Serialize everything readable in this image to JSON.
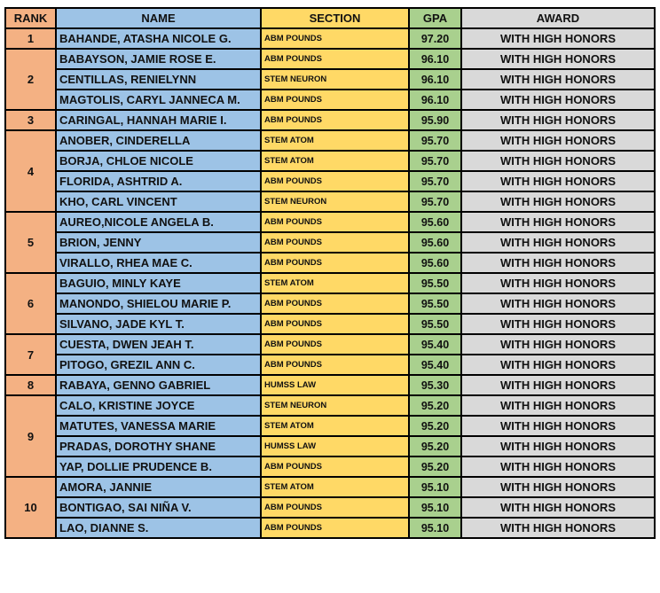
{
  "headers": {
    "rank": "RANK",
    "name": "NAME",
    "section": "SECTION",
    "gpa": "GPA",
    "award": "AWARD"
  },
  "groups": [
    {
      "rank": "1",
      "rows": [
        {
          "name": "BAHANDE, ATASHA NICOLE G.",
          "section": "ABM POUNDS",
          "gpa": "97.20",
          "award": "WITH HIGH HONORS"
        }
      ]
    },
    {
      "rank": "2",
      "rows": [
        {
          "name": "BABAYSON, JAMIE ROSE E.",
          "section": "ABM POUNDS",
          "gpa": "96.10",
          "award": "WITH HIGH HONORS"
        },
        {
          "name": "CENTILLAS, RENIELYNN",
          "section": "STEM NEURON",
          "gpa": "96.10",
          "award": "WITH HIGH HONORS"
        },
        {
          "name": "MAGTOLIS, CARYL JANNECA M.",
          "section": "ABM POUNDS",
          "gpa": "96.10",
          "award": "WITH HIGH HONORS"
        }
      ]
    },
    {
      "rank": "3",
      "rows": [
        {
          "name": "CARINGAL, HANNAH MARIE I.",
          "section": "ABM POUNDS",
          "gpa": "95.90",
          "award": "WITH HIGH HONORS"
        }
      ]
    },
    {
      "rank": "4",
      "rows": [
        {
          "name": "ANOBER, CINDERELLA",
          "section": "STEM ATOM",
          "gpa": "95.70",
          "award": "WITH HIGH HONORS"
        },
        {
          "name": "BORJA, CHLOE NICOLE",
          "section": "STEM ATOM",
          "gpa": "95.70",
          "award": "WITH HIGH HONORS"
        },
        {
          "name": "FLORIDA, ASHTRID A.",
          "section": "ABM POUNDS",
          "gpa": "95.70",
          "award": "WITH HIGH HONORS"
        },
        {
          "name": "KHO, CARL VINCENT",
          "section": "STEM NEURON",
          "gpa": "95.70",
          "award": "WITH HIGH HONORS"
        }
      ]
    },
    {
      "rank": "5",
      "rows": [
        {
          "name": "AUREO,NICOLE ANGELA B.",
          "section": "ABM POUNDS",
          "gpa": "95.60",
          "award": "WITH HIGH HONORS"
        },
        {
          "name": "BRION, JENNY",
          "section": "ABM POUNDS",
          "gpa": "95.60",
          "award": "WITH HIGH HONORS"
        },
        {
          "name": "VIRALLO, RHEA MAE C.",
          "section": "ABM POUNDS",
          "gpa": "95.60",
          "award": "WITH HIGH HONORS"
        }
      ]
    },
    {
      "rank": "6",
      "rows": [
        {
          "name": "BAGUIO, MINLY KAYE",
          "section": "STEM ATOM",
          "gpa": "95.50",
          "award": "WITH HIGH HONORS"
        },
        {
          "name": "MANONDO, SHIELOU MARIE P.",
          "section": "ABM POUNDS",
          "gpa": "95.50",
          "award": "WITH HIGH HONORS"
        },
        {
          "name": "SILVANO, JADE KYL T.",
          "section": "ABM POUNDS",
          "gpa": "95.50",
          "award": "WITH HIGH HONORS"
        }
      ]
    },
    {
      "rank": "7",
      "rows": [
        {
          "name": "CUESTA, DWEN JEAH T.",
          "section": "ABM POUNDS",
          "gpa": "95.40",
          "award": "WITH HIGH HONORS"
        },
        {
          "name": "PITOGO, GREZIL ANN C.",
          "section": "ABM POUNDS",
          "gpa": "95.40",
          "award": "WITH HIGH HONORS"
        }
      ]
    },
    {
      "rank": "8",
      "rows": [
        {
          "name": "RABAYA, GENNO GABRIEL",
          "section": "HUMSS LAW",
          "gpa": "95.30",
          "award": "WITH HIGH HONORS"
        }
      ]
    },
    {
      "rank": "9",
      "rows": [
        {
          "name": "CALO, KRISTINE JOYCE",
          "section": "STEM NEURON",
          "gpa": "95.20",
          "award": "WITH HIGH HONORS"
        },
        {
          "name": "MATUTES, VANESSA MARIE",
          "section": "STEM ATOM",
          "gpa": "95.20",
          "award": "WITH HIGH HONORS"
        },
        {
          "name": "PRADAS, DOROTHY SHANE",
          "section": "HUMSS LAW",
          "gpa": "95.20",
          "award": "WITH HIGH HONORS"
        },
        {
          "name": "YAP, DOLLIE PRUDENCE B.",
          "section": "ABM POUNDS",
          "gpa": "95.20",
          "award": "WITH HIGH HONORS"
        }
      ]
    },
    {
      "rank": "10",
      "rows": [
        {
          "name": "AMORA, JANNIE",
          "section": "STEM ATOM",
          "gpa": "95.10",
          "award": "WITH HIGH HONORS"
        },
        {
          "name": "BONTIGAO, SAI NIÑA V.",
          "section": "ABM POUNDS",
          "gpa": "95.10",
          "award": "WITH HIGH HONORS"
        },
        {
          "name": "LAO, DIANNE S.",
          "section": "ABM POUNDS",
          "gpa": "95.10",
          "award": "WITH HIGH HONORS"
        }
      ]
    }
  ],
  "colors": {
    "rank": "#f4b183",
    "name": "#9dc3e6",
    "section": "#ffd966",
    "gpa": "#a9d08e",
    "award": "#d9d9d9"
  }
}
